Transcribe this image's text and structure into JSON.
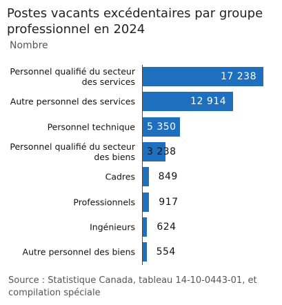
{
  "chart_data": {
    "type": "bar",
    "orientation": "horizontal",
    "title": "Postes vacants excédentaires par groupe professionnel en 2024",
    "subtitle": "Nombre",
    "categories": [
      "Personnel qualifié du secteur des services",
      "Autre personnel des services",
      "Personnel technique",
      "Personnel qualifié du secteur des biens",
      "Cadres",
      "Professionnels",
      "Ingénieurs",
      "Autre personnel des biens"
    ],
    "values": [
      17238,
      12914,
      5350,
      3238,
      849,
      917,
      624,
      554
    ],
    "value_labels": [
      "17 238",
      "12 914",
      "5 350",
      "3 238",
      "849",
      "917",
      "624",
      "554"
    ],
    "color": "#1f6fbf",
    "source": "Source : Statistique Canada, tableau 14-10-0443-01, et compilation spéciale"
  }
}
